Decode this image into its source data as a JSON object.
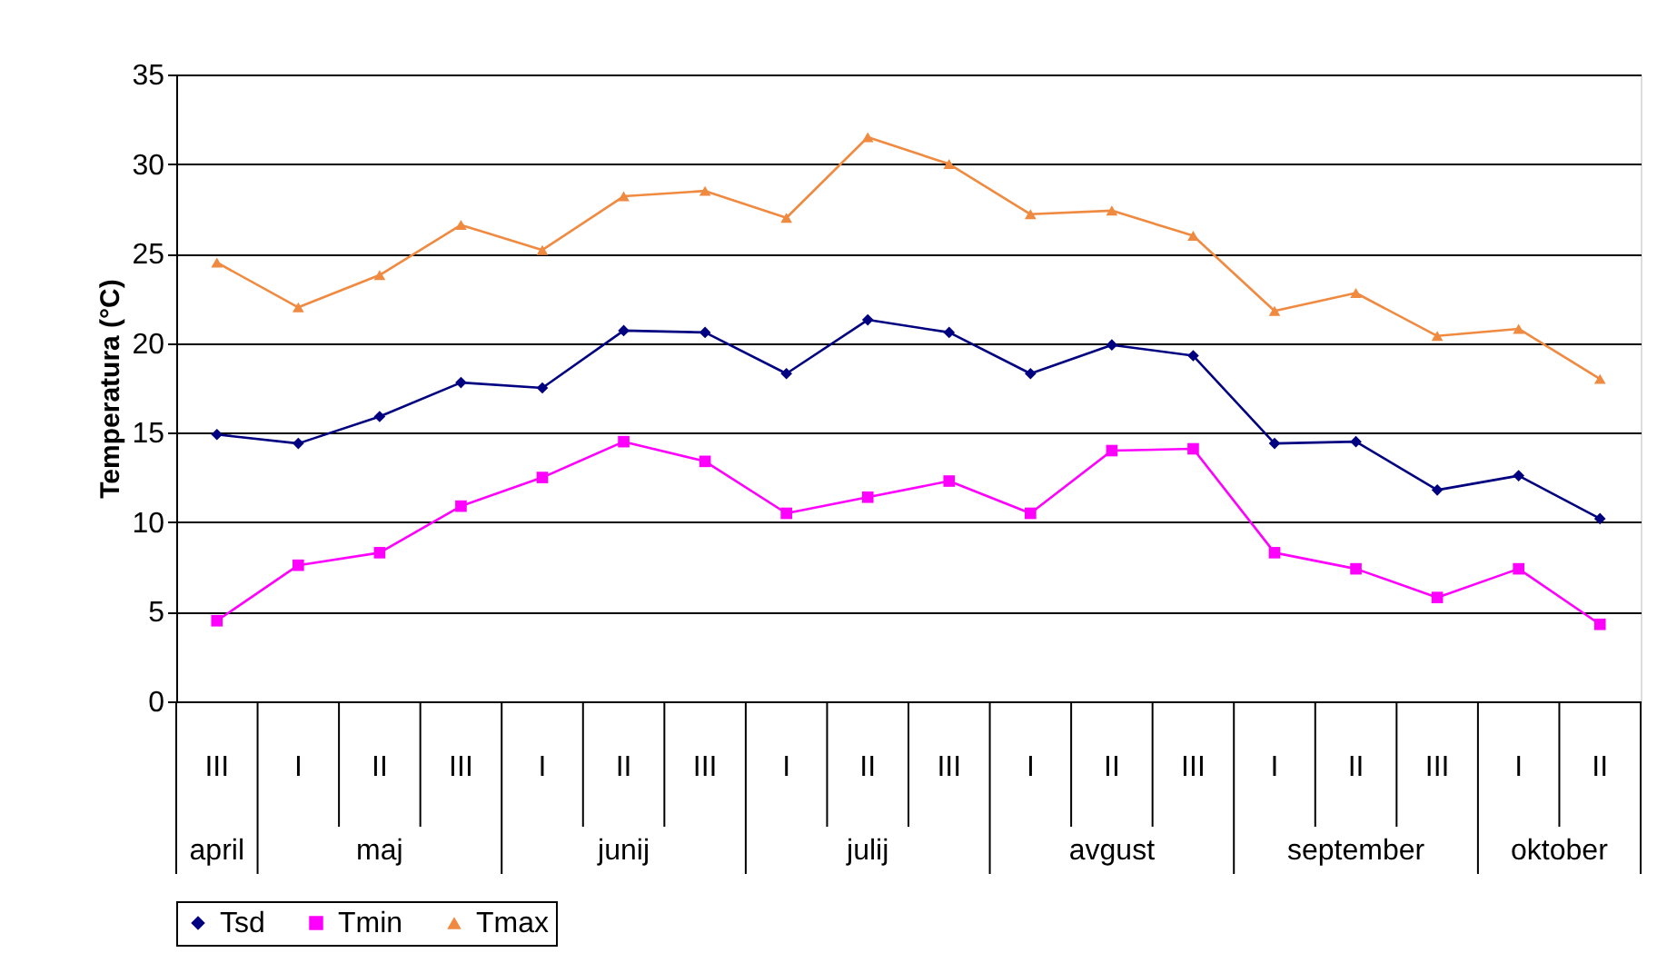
{
  "chart_data": {
    "type": "line",
    "ylabel": "Temperatura (°C)",
    "categories": [
      "III",
      "I",
      "II",
      "III",
      "I",
      "II",
      "III",
      "I",
      "II",
      "III",
      "I",
      "II",
      "III",
      "I",
      "II",
      "III",
      "I",
      "II"
    ],
    "annotations": [
      "april",
      "maj",
      "junij",
      "julij",
      "avgust",
      "september",
      "oktober"
    ],
    "ylim": [
      0,
      35
    ],
    "yticks": [
      0,
      5,
      10,
      15,
      20,
      25,
      30,
      35
    ],
    "grid": "y",
    "legend": "bottom",
    "series": [
      {
        "name": "Tsd",
        "color": "#000080",
        "marker": "diamond",
        "values": [
          14.9,
          14.4,
          15.9,
          17.8,
          17.5,
          20.7,
          20.6,
          18.3,
          21.3,
          20.6,
          18.3,
          19.9,
          19.3,
          14.4,
          14.5,
          11.8,
          12.6,
          10.2
        ]
      },
      {
        "name": "Tmin",
        "color": "#ff00ff",
        "marker": "square",
        "values": [
          4.5,
          7.6,
          8.3,
          10.9,
          12.5,
          14.5,
          13.4,
          10.5,
          11.4,
          12.3,
          10.5,
          14.0,
          14.1,
          8.3,
          7.4,
          5.8,
          7.4,
          4.3
        ]
      },
      {
        "name": "Tmax",
        "color": "#f08a40",
        "marker": "triangle",
        "values": [
          24.5,
          22.0,
          23.8,
          26.6,
          25.2,
          28.2,
          28.5,
          27.0,
          31.5,
          30.0,
          27.2,
          27.4,
          26.0,
          21.8,
          22.8,
          20.4,
          20.8,
          18.0
        ]
      }
    ]
  }
}
